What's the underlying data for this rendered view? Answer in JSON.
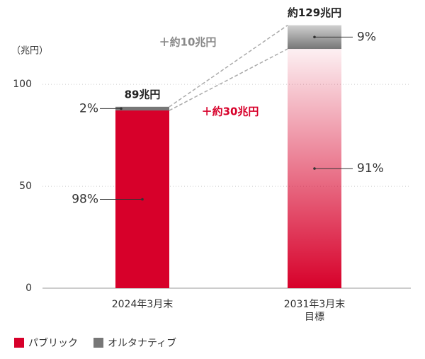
{
  "chart_data": {
    "type": "stacked_bar",
    "y_label": "（兆円）",
    "categories": [
      "2024年3月末",
      "2031年3月末\n目標"
    ],
    "series": [
      {
        "name": "パブリック",
        "color": "#d7002a",
        "values": [
          87.2,
          117.4
        ],
        "shares": [
          98,
          91
        ],
        "share_labels": [
          "98%",
          "91%"
        ]
      },
      {
        "name": "オルタナティブ",
        "color": "#777777",
        "values": [
          1.8,
          11.6
        ],
        "shares": [
          2,
          9
        ],
        "share_labels": [
          "2%",
          "9%"
        ]
      }
    ],
    "totals": [
      89,
      129
    ],
    "total_labels": [
      "89兆円",
      "約129兆円"
    ],
    "annotations": [
      {
        "text": "＋約10兆円",
        "color": "#888888"
      },
      {
        "text": "＋約30兆円",
        "color": "#d7002a"
      }
    ],
    "ylim": [
      0,
      140
    ],
    "yticks": [
      0,
      50,
      100
    ],
    "grid": true,
    "legend": "bottom-left"
  }
}
